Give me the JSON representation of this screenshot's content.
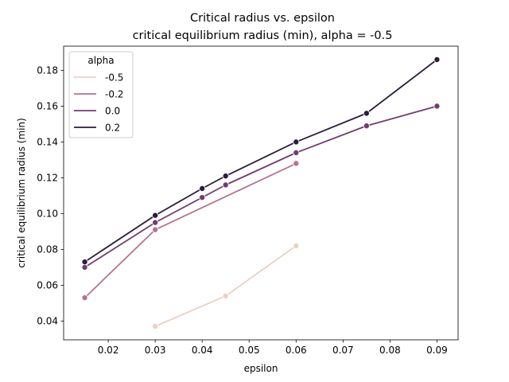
{
  "chart_data": {
    "type": "line",
    "title": "Critical radius vs. epsilon",
    "subtitle": "critical equilibrium radius (min), alpha = -0.5",
    "xlabel": "epsilon",
    "ylabel": "critical equilibrium radius (min)",
    "xlim": [
      0.0105,
      0.0945
    ],
    "ylim": [
      0.0295,
      0.1935
    ],
    "xticks": [
      0.02,
      0.03,
      0.04,
      0.05,
      0.06,
      0.07,
      0.08,
      0.09
    ],
    "xtick_labels": [
      "0.02",
      "0.03",
      "0.04",
      "0.05",
      "0.06",
      "0.07",
      "0.08",
      "0.09"
    ],
    "yticks": [
      0.04,
      0.06,
      0.08,
      0.1,
      0.12,
      0.14,
      0.16,
      0.18
    ],
    "ytick_labels": [
      "0.04",
      "0.06",
      "0.08",
      "0.10",
      "0.12",
      "0.14",
      "0.16",
      "0.18"
    ],
    "grid": false,
    "legend": {
      "title": "alpha",
      "placement": "top-left"
    },
    "series": [
      {
        "name": "-0.5",
        "color": "#ecd0c7",
        "x": [
          0.03,
          0.045,
          0.06
        ],
        "y": [
          0.037,
          0.054,
          0.082
        ]
      },
      {
        "name": "-0.2",
        "color": "#b5738f",
        "x": [
          0.015,
          0.03,
          0.06
        ],
        "y": [
          0.053,
          0.091,
          0.128
        ]
      },
      {
        "name": "0.0",
        "color": "#703d70",
        "x": [
          0.015,
          0.03,
          0.04,
          0.045,
          0.06,
          0.075,
          0.09
        ],
        "y": [
          0.07,
          0.095,
          0.109,
          0.116,
          0.134,
          0.149,
          0.16
        ]
      },
      {
        "name": "0.2",
        "color": "#2b1d3c",
        "x": [
          0.015,
          0.03,
          0.04,
          0.045,
          0.06,
          0.075,
          0.09
        ],
        "y": [
          0.073,
          0.099,
          0.114,
          0.121,
          0.14,
          0.156,
          0.186
        ]
      }
    ]
  }
}
